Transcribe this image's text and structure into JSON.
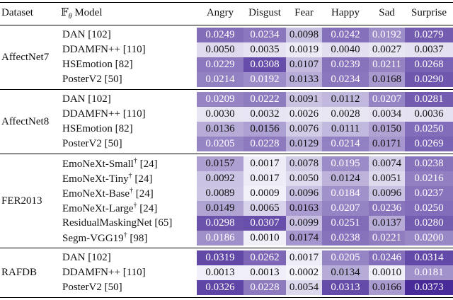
{
  "header": {
    "dataset": "Dataset",
    "model": {
      "symbol": "𝔽",
      "sub": "θ",
      "text": "Model"
    },
    "emotions": [
      "Angry",
      "Disgust",
      "Fear",
      "Happy",
      "Sad",
      "Surprise"
    ]
  },
  "groups": [
    {
      "dataset": "AffectNet7",
      "rows": [
        {
          "name": "DAN",
          "ref": "[102]",
          "values": [
            "0.0249",
            "0.0234",
            "0.0098",
            "0.0242",
            "0.0192",
            "0.0279"
          ]
        },
        {
          "name": "DDAMFN++",
          "ref": "[110]",
          "values": [
            "0.0050",
            "0.0035",
            "0.0019",
            "0.0040",
            "0.0027",
            "0.0037"
          ]
        },
        {
          "name": "HSEmotion",
          "ref": "[82]",
          "values": [
            "0.0229",
            "0.0308",
            "0.0107",
            "0.0239",
            "0.0211",
            "0.0268"
          ]
        },
        {
          "name": "PosterV2",
          "ref": "[50]",
          "values": [
            "0.0214",
            "0.0192",
            "0.0133",
            "0.0234",
            "0.0168",
            "0.0290"
          ]
        }
      ]
    },
    {
      "dataset": "AffectNet8",
      "rows": [
        {
          "name": "DAN",
          "ref": "[102]",
          "values": [
            "0.0209",
            "0.0222",
            "0.0091",
            "0.0112",
            "0.0207",
            "0.0281"
          ]
        },
        {
          "name": "DDAMFN++",
          "ref": "[110]",
          "values": [
            "0.0030",
            "0.0032",
            "0.0026",
            "0.0028",
            "0.0034",
            "0.0036"
          ]
        },
        {
          "name": "HSEmotion",
          "ref": "[82]",
          "values": [
            "0.0136",
            "0.0156",
            "0.0076",
            "0.0111",
            "0.0150",
            "0.0250"
          ]
        },
        {
          "name": "PosterV2",
          "ref": "[50]",
          "values": [
            "0.0205",
            "0.0228",
            "0.0129",
            "0.0214",
            "0.0171",
            "0.0269"
          ]
        }
      ]
    },
    {
      "dataset": "FER2013",
      "rows": [
        {
          "name": "EmoNeXt-Small",
          "dagger": "†",
          "ref": "[24]",
          "values": [
            "0.0157",
            "0.0017",
            "0.0078",
            "0.0195",
            "0.0074",
            "0.0238"
          ]
        },
        {
          "name": "EmoNeXt-Tiny",
          "dagger": "†",
          "ref": "[24]",
          "values": [
            "0.0092",
            "0.0017",
            "0.0050",
            "0.0124",
            "0.0051",
            "0.0216"
          ]
        },
        {
          "name": "EmoNeXt-Base",
          "dagger": "†",
          "ref": "[24]",
          "values": [
            "0.0089",
            "0.0009",
            "0.0096",
            "0.0184",
            "0.0096",
            "0.0237"
          ]
        },
        {
          "name": "EmoNeXt-Large",
          "dagger": "†",
          "ref": "[24]",
          "values": [
            "0.0149",
            "0.0065",
            "0.0163",
            "0.0207",
            "0.0236",
            "0.0250"
          ]
        },
        {
          "name": "ResidualMaskingNet",
          "ref": "[65]",
          "values": [
            "0.0298",
            "0.0307",
            "0.0099",
            "0.0251",
            "0.0137",
            "0.0280"
          ]
        },
        {
          "name": "Segm-VGG19",
          "dagger": "†",
          "ref": "[98]",
          "values": [
            "0.0186",
            "0.0010",
            "0.0174",
            "0.0238",
            "0.0221",
            "0.0200"
          ]
        }
      ]
    },
    {
      "dataset": "RAFDB",
      "rows": [
        {
          "name": "DAN",
          "ref": "[102]",
          "values": [
            "0.0319",
            "0.0262",
            "0.0017",
            "0.0205",
            "0.0246",
            "0.0314"
          ]
        },
        {
          "name": "DDAMFN++",
          "ref": "[110]",
          "values": [
            "0.0013",
            "0.0013",
            "0.0002",
            "0.0134",
            "0.0010",
            "0.0181"
          ]
        },
        {
          "name": "PosterV2",
          "ref": "[50]",
          "values": [
            "0.0326",
            "0.0228",
            "0.0054",
            "0.0313",
            "0.0166",
            "0.0373"
          ]
        }
      ]
    }
  ]
}
